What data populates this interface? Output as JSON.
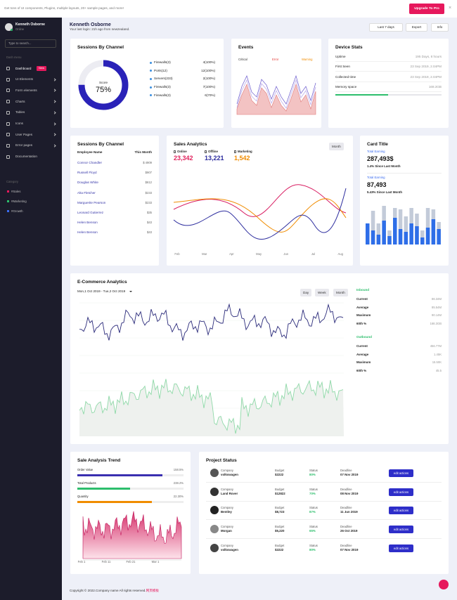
{
  "topbar": {
    "message": "Get tons of UI components, Plugins, multiple layouts, 20+ sample pages, and more!",
    "button": "Upgrade To Pro",
    "close": "×"
  },
  "sidebar": {
    "user": {
      "name": "Kenneth Osborne",
      "status": "Online"
    },
    "search_placeholder": "Type to search...",
    "menu_heading": "Dash menu",
    "menu": [
      {
        "label": "Dashboard",
        "badge": "New"
      },
      {
        "label": "UI Elements"
      },
      {
        "label": "Form elements"
      },
      {
        "label": "Charts"
      },
      {
        "label": "Tables"
      },
      {
        "label": "Icons"
      },
      {
        "label": "User Pages"
      },
      {
        "label": "Error pages"
      },
      {
        "label": "Documentation"
      }
    ],
    "category_heading": "Category",
    "categories": [
      "#Sales",
      "#Marketing",
      "#Growth"
    ]
  },
  "header": {
    "name": "Kenneth Osborne",
    "last_login": "Your last login: 21h ago from newzealand.",
    "buttons": [
      "Last 7 days",
      "Export",
      "Info"
    ]
  },
  "sessions_channel": {
    "title": "Sessions By Channel",
    "score_label": "Score",
    "score": "75%",
    "legend": [
      {
        "label": "Firewalls(3)",
        "value": "4(100%)"
      },
      {
        "label": "Ports(12)",
        "value": "12(100%)"
      },
      {
        "label": "Servers(233)",
        "value": "2(100%)"
      },
      {
        "label": "Firewalls(3)",
        "value": "7(100%)"
      },
      {
        "label": "Firewalls(3)",
        "value": "6(70%)"
      }
    ]
  },
  "events": {
    "title": "Events",
    "legend": [
      "Critical",
      "Error",
      "Warning"
    ]
  },
  "device_stats": {
    "title": "Device Stats",
    "rows": [
      {
        "label": "Uptime",
        "value": "195 Days, 8 hours"
      },
      {
        "label": "First Seen",
        "value": "23 Sep 2019, 2.04PM"
      },
      {
        "label": "Collected time",
        "value": "23 Sep 2019, 2.04PM"
      },
      {
        "label": "Memory space",
        "value": "168.3GB"
      }
    ]
  },
  "sessions_table": {
    "title": "Sessions By Channel",
    "headers": [
      "Employee Name",
      "This Month"
    ],
    "rows": [
      [
        "Connor Chandler",
        "$ 4909"
      ],
      [
        "Russell Floyd",
        "$907"
      ],
      [
        "Douglas White",
        "$612"
      ],
      [
        "Alta Fletcher",
        "$233"
      ],
      [
        "Marguerite Pearson",
        "$233"
      ],
      [
        "Leonard Gutierrez",
        "$35"
      ],
      [
        "Helen Benson",
        "$43"
      ],
      [
        "Helen Benson",
        "$43"
      ]
    ]
  },
  "sales_analytics": {
    "title": "Sales Analytics",
    "button": "Month",
    "stats": [
      {
        "label": "Online",
        "value": "23,342"
      },
      {
        "label": "Offline",
        "value": "13,221"
      },
      {
        "label": "Marketing",
        "value": "1,542"
      }
    ],
    "months": [
      "Feb",
      "Mar",
      "Apr",
      "May",
      "Jun",
      "Jul",
      "Aug"
    ]
  },
  "card": {
    "title": "Card Title",
    "items": [
      {
        "label": "Total Earning",
        "value": "287,493$",
        "change": "1.4% Since Last Month"
      },
      {
        "label": "Total Earning",
        "value": "87,493",
        "change": "5.43% Since Last Month"
      }
    ]
  },
  "ecommerce": {
    "title": "E-Commerce Analytics",
    "date_range": "Mon,1 Oct 2019 - Tue,2 Oct 2019",
    "buttons": [
      "Day",
      "Week",
      "Month"
    ],
    "groups": [
      {
        "title": "Inbound",
        "rows": [
          {
            "label": "Current",
            "value": "86.34M"
          },
          {
            "label": "Average",
            "value": "85.54M"
          },
          {
            "label": "Maximum",
            "value": "90.14M"
          },
          {
            "label": "60th %",
            "value": "168.3GB"
          }
        ]
      },
      {
        "title": "Outbound",
        "rows": [
          {
            "label": "Current",
            "value": "456.77M"
          },
          {
            "label": "Average",
            "value": "1.45K"
          },
          {
            "label": "Maximum",
            "value": "15.50K"
          },
          {
            "label": "60th %",
            "value": "45.5"
          }
        ]
      }
    ]
  },
  "sale_trend": {
    "title": "Sale Analysis Trend",
    "bars": [
      {
        "label": "Order Value",
        "value": "158.5%"
      },
      {
        "label": "Total Products",
        "value": "238.2%"
      },
      {
        "label": "Quantity",
        "value": "22.30%"
      }
    ],
    "dates": [
      "Feb 1",
      "Feb 11",
      "Feb 21",
      "Mar 1"
    ]
  },
  "project_status": {
    "title": "Project Status",
    "labels": {
      "company": "Company",
      "budget": "Budget",
      "status": "Status",
      "deadline": "Deadline"
    },
    "rows": [
      {
        "company": "volkswagen",
        "budget": "$2222",
        "status": "80%",
        "deadline": "07 Nov 2019",
        "action": "edit actions"
      },
      {
        "company": "Land Rover",
        "budget": "$12822",
        "status": "70%",
        "deadline": "08 Nov 2019",
        "action": "edit actions"
      },
      {
        "company": "Bentley",
        "budget": "$8,723",
        "status": "87%",
        "deadline": "11 Jun 2019",
        "action": "edit actions"
      },
      {
        "company": "Morgan",
        "budget": "$5,220",
        "status": "65%",
        "deadline": "26 Oct 2019",
        "action": "edit actions"
      },
      {
        "company": "volkswagen",
        "budget": "$2222",
        "status": "80%",
        "deadline": "07 Nov 2019",
        "action": "edit actions"
      }
    ]
  },
  "footer": {
    "copyright": "Copyright © 2022.Company name All rights reserved.",
    "link": "网页模板"
  }
}
